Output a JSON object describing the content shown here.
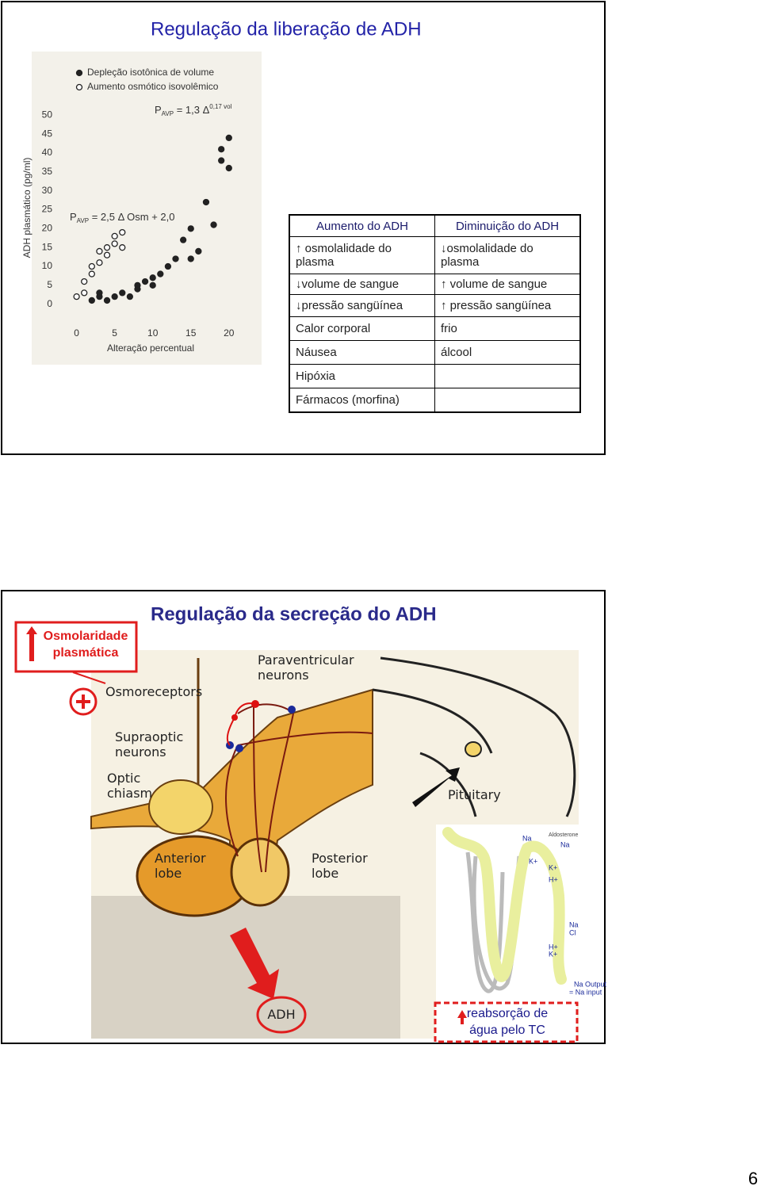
{
  "slides": [
    {
      "title": "Regulação da liberação de ADH",
      "table": {
        "headers": [
          "Aumento do ADH",
          "Diminuição do ADH"
        ],
        "increase": [
          "↑ osmolalidade do plasma",
          "↓volume de sangue",
          "↓pressão sangüínea",
          "Calor corporal",
          "Náusea",
          "Hipóxia",
          "Fármacos (morfina)"
        ],
        "decrease": [
          "↓osmolalidade do plasma",
          "↑ volume de sangue",
          "↑ pressão sangüínea",
          "frio",
          "álcool"
        ]
      }
    },
    {
      "title": "Regulação da secreção do ADH",
      "stimulus": [
        "Osmolaridade",
        "plasmática"
      ],
      "labels": [
        [
          "Paraventricular",
          "neurons"
        ],
        [
          "Osmoreceptors"
        ],
        [
          "Supraoptic",
          "neurons"
        ],
        [
          "Optic",
          "chiasm"
        ],
        [
          "Pituitary"
        ],
        [
          "Anterior",
          "lobe"
        ],
        [
          "Posterior",
          "lobe"
        ],
        [
          "ADH"
        ]
      ],
      "kidney_labels": [
        "Na",
        "Aldosterone",
        "Na",
        "K+",
        "K+",
        "H+",
        "Na",
        "Cl",
        "H+",
        "K+",
        "Na Output",
        "= Na input"
      ],
      "effect": [
        "reabsorção de",
        "água pelo TC"
      ]
    }
  ],
  "page_number": "6",
  "chart_data": {
    "type": "scatter",
    "xlabel": "Alteração percentual",
    "ylabel": "ADH plasmático (pg/ml)",
    "annotations": [
      {
        "base": "P",
        "sub": "AVP",
        "text": " = 1,3 Δ",
        "sup": "0,17 vol"
      },
      {
        "base": "P",
        "sub": "AVP",
        "text": " = 2,5 Δ Osm + 2,0"
      }
    ],
    "xlim": [
      -1,
      22
    ],
    "ylim": [
      -3,
      53
    ],
    "xticks": [
      0,
      5,
      10,
      15,
      20
    ],
    "yticks": [
      0,
      5,
      10,
      15,
      20,
      25,
      30,
      35,
      40,
      45,
      50
    ],
    "series": [
      {
        "name": "Depleção isotônica de volume",
        "color": "#222222",
        "marker": "filled",
        "x": [
          2,
          3,
          3,
          4,
          5,
          6,
          7,
          8,
          8,
          9,
          10,
          10,
          11,
          12,
          13,
          14,
          15,
          15,
          16,
          17,
          18,
          19,
          19,
          20,
          20
        ],
        "values": [
          1,
          2,
          3,
          1,
          2,
          3,
          2,
          4,
          5,
          6,
          5,
          7,
          8,
          10,
          12,
          17,
          12,
          20,
          14,
          27,
          21,
          38,
          41,
          44,
          36
        ]
      },
      {
        "name": "Aumento osmótico isovolêmico",
        "color": "#222222",
        "marker": "open",
        "x": [
          0,
          1,
          1,
          2,
          2,
          3,
          3,
          4,
          4,
          5,
          5,
          6,
          6
        ],
        "values": [
          2,
          3,
          6,
          8,
          10,
          11,
          14,
          13,
          15,
          16,
          18,
          19,
          15
        ]
      }
    ]
  }
}
